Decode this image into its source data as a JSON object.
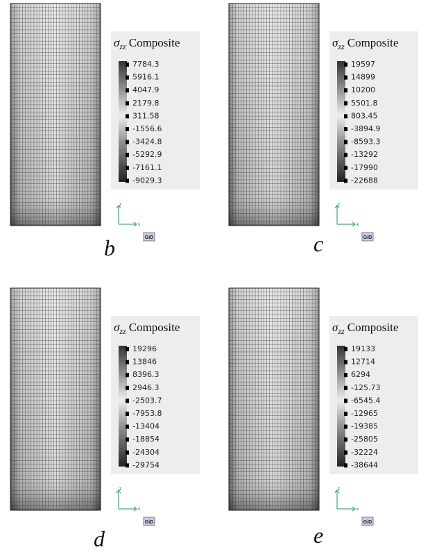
{
  "panels": [
    {
      "label": "b",
      "legend": {
        "symbol": "σ",
        "subscript": "zz",
        "title": "Composite",
        "values": [
          "7784.3",
          "5916.1",
          "4047.9",
          "2179.8",
          "311.58",
          "-1556.6",
          "-3424.8",
          "-5292.9",
          "-7161.1",
          "-9029.3"
        ]
      },
      "axes": {
        "z": "z",
        "x": "x"
      },
      "logo": "GiD"
    },
    {
      "label": "c",
      "legend": {
        "symbol": "σ",
        "subscript": "zz",
        "title": "Composite",
        "values": [
          "19597",
          "14899",
          "10200",
          "5501.8",
          "803.45",
          "-3894.9",
          "-8593.3",
          "-13292",
          "-17990",
          "-22688"
        ]
      },
      "axes": {
        "z": "z",
        "x": "x"
      },
      "logo": "GiD"
    },
    {
      "label": "d",
      "legend": {
        "symbol": "σ",
        "subscript": "zz",
        "title": "Composite",
        "values": [
          "19296",
          "13846",
          "8396.3",
          "2946.3",
          "-2503.7",
          "-7953.8",
          "-13404",
          "-18854",
          "-24304",
          "-29754"
        ]
      },
      "axes": {
        "z": "z",
        "x": "x"
      },
      "logo": "GiD"
    },
    {
      "label": "e",
      "legend": {
        "symbol": "σ",
        "subscript": "zz",
        "title": "Composite",
        "values": [
          "19133",
          "12714",
          "6294",
          "-125.73",
          "-6545.4",
          "-12965",
          "-19385",
          "-25805",
          "-32224",
          "-38644"
        ]
      },
      "axes": {
        "z": "z",
        "x": "x"
      },
      "logo": "GiD"
    }
  ]
}
